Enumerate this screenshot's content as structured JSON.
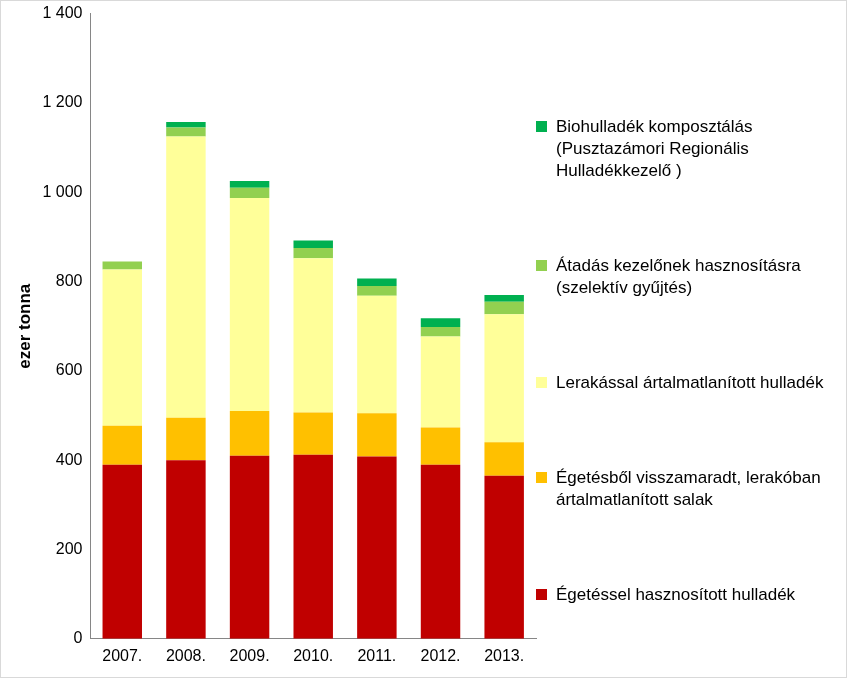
{
  "chart_data": {
    "type": "bar",
    "stacked": true,
    "grid": false,
    "legend": "right",
    "y_label": "ezer tonna",
    "categories": [
      "2007.",
      "2008.",
      "2009.",
      "2010.",
      "2011.",
      "2012.",
      "2013."
    ],
    "ylim": [
      0,
      1400
    ],
    "yticks": [
      0,
      200,
      400,
      600,
      800,
      {
        "value": 1000,
        "label": "1 000"
      },
      {
        "value": 1200,
        "label": "1 200"
      },
      {
        "value": 1400,
        "label": "1 400"
      }
    ],
    "series": [
      {
        "name": "Égetéssel hasznosított hulladék",
        "color": "#c00000",
        "values": [
          390,
          400,
          410,
          412,
          408,
          390,
          365
        ]
      },
      {
        "name": "Égetésből visszamaradt, lerakóban ártalmatlanított salak",
        "color": "#ffc000",
        "values": [
          87,
          95,
          100,
          95,
          97,
          83,
          75
        ]
      },
      {
        "name": "Lerakással ártalmatlanított hulladék",
        "color": "#ffff99",
        "values": [
          350,
          630,
          477,
          345,
          263,
          204,
          287
        ]
      },
      {
        "name": "Átadás kezelőnek hasznosításra (szelektív gyűjtés)",
        "color": "#92d050",
        "values": [
          18,
          20,
          23,
          23,
          22,
          21,
          28
        ]
      },
      {
        "name": "Biohulladék komposztálás (Pusztazámori Regionális Hulladékkezelő )",
        "color": "#00b050",
        "values": [
          null,
          12,
          15,
          17,
          17,
          20,
          15
        ]
      }
    ]
  }
}
